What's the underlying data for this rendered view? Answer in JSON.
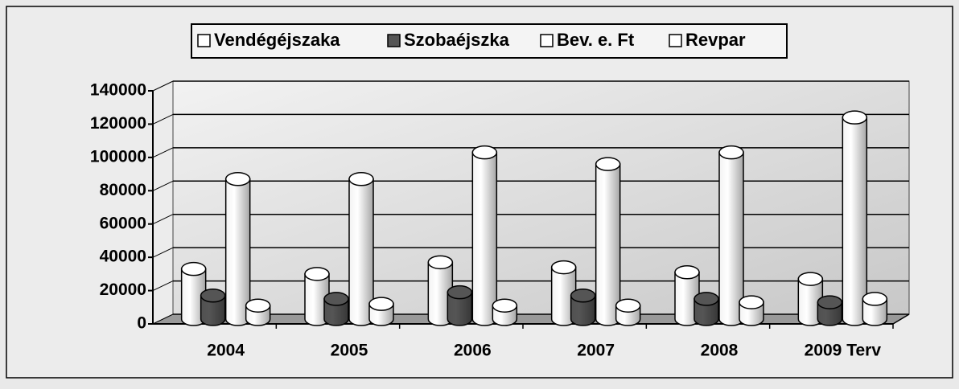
{
  "chart_data": {
    "type": "bar3d",
    "categories": [
      "2004",
      "2005",
      "2006",
      "2007",
      "2008",
      "2009 Terv"
    ],
    "series": [
      {
        "name": "Vendégéjszaka",
        "color": "#ffffff",
        "values": [
          33000,
          30000,
          37000,
          34000,
          31000,
          27000
        ]
      },
      {
        "name": "Szobaéjszka",
        "color": "#555555",
        "values": [
          17000,
          15000,
          19000,
          17000,
          15000,
          13000
        ]
      },
      {
        "name": "Bev. e. Ft",
        "color": "#ffffff",
        "values": [
          87000,
          87000,
          103000,
          96000,
          103000,
          124000
        ]
      },
      {
        "name": "Revpar",
        "color": "#ffffff",
        "values": [
          11000,
          12000,
          11000,
          11000,
          13000,
          15000
        ]
      }
    ],
    "ylim": [
      0,
      140000
    ],
    "yticks": [
      0,
      20000,
      40000,
      60000,
      80000,
      100000,
      120000,
      140000
    ],
    "grid": true
  }
}
